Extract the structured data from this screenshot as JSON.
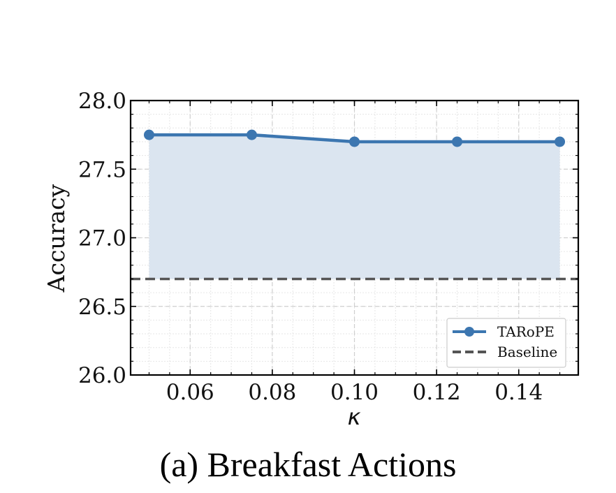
{
  "caption": "(a) Breakfast Actions",
  "chart_data": {
    "type": "line",
    "xlabel": "κ",
    "ylabel": "Accuracy",
    "xlim": [
      0.0455,
      0.1545
    ],
    "ylim": [
      26.0,
      28.0
    ],
    "xticks": [
      "0.06",
      "0.08",
      "0.10",
      "0.12",
      "0.14"
    ],
    "yticks": [
      "26.0",
      "26.5",
      "27.0",
      "27.5",
      "28.0"
    ],
    "grid": true,
    "legend_position": "bottom-right",
    "series": [
      {
        "name": "TARoPE",
        "x": [
          0.05,
          0.075,
          0.1,
          0.125,
          0.15
        ],
        "y": [
          27.75,
          27.75,
          27.7,
          27.7,
          27.7
        ],
        "color": "#3c76b0",
        "marker": "circle",
        "fill_to": 26.7,
        "fill_color": "#dbe5f0"
      },
      {
        "name": "Baseline",
        "y_constant": 26.7,
        "color": "#555555",
        "style": "dashed"
      }
    ]
  }
}
